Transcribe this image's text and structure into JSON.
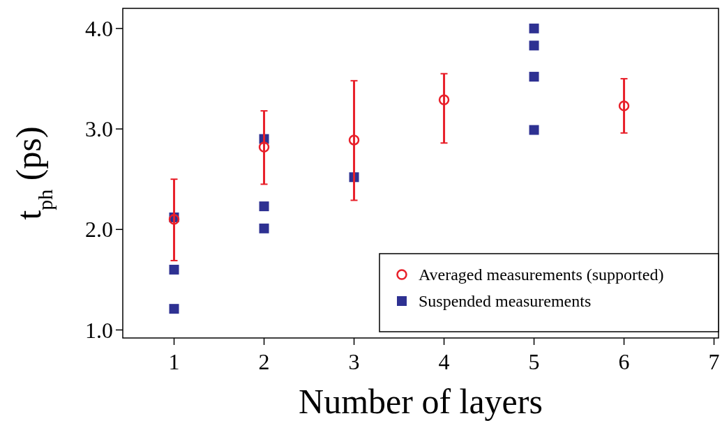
{
  "chart_data": {
    "type": "scatter",
    "xlabel": "Number of layers",
    "ylabel": "t$_{ph}$ (ps)",
    "xlim": [
      0.43,
      7.05
    ],
    "xticks": [
      1,
      2,
      3,
      4,
      5,
      6,
      7
    ],
    "ylim": [
      0.92,
      4.2
    ],
    "yticks": [
      {
        "value": 1,
        "label": "1.0"
      },
      {
        "value": 2,
        "label": "2.0"
      },
      {
        "value": 3,
        "label": "3.0"
      },
      {
        "value": 4,
        "label": "4.0"
      }
    ],
    "grid": false,
    "legend": "bottom right",
    "series": [
      {
        "name": "Averaged measurements (supported)",
        "color": "#e8202a",
        "marker": "circle",
        "x": [
          1,
          2,
          3,
          4,
          6
        ],
        "values": [
          2.1,
          2.82,
          2.89,
          3.29,
          3.23
        ],
        "errors": [
          [
            1.69,
            2.5
          ],
          [
            2.45,
            3.18
          ],
          [
            2.29,
            3.48
          ],
          [
            2.86,
            3.55
          ],
          [
            2.96,
            3.5
          ]
        ]
      },
      {
        "name": "Suspended measurements",
        "color": "#2e3192",
        "marker": "square",
        "x": [
          1,
          1,
          1,
          2,
          2,
          2,
          3,
          5,
          5,
          5,
          5
        ],
        "values": [
          2.12,
          1.6,
          1.21,
          2.9,
          2.23,
          2.01,
          2.52,
          4.0,
          3.83,
          3.52,
          2.99
        ]
      }
    ]
  }
}
